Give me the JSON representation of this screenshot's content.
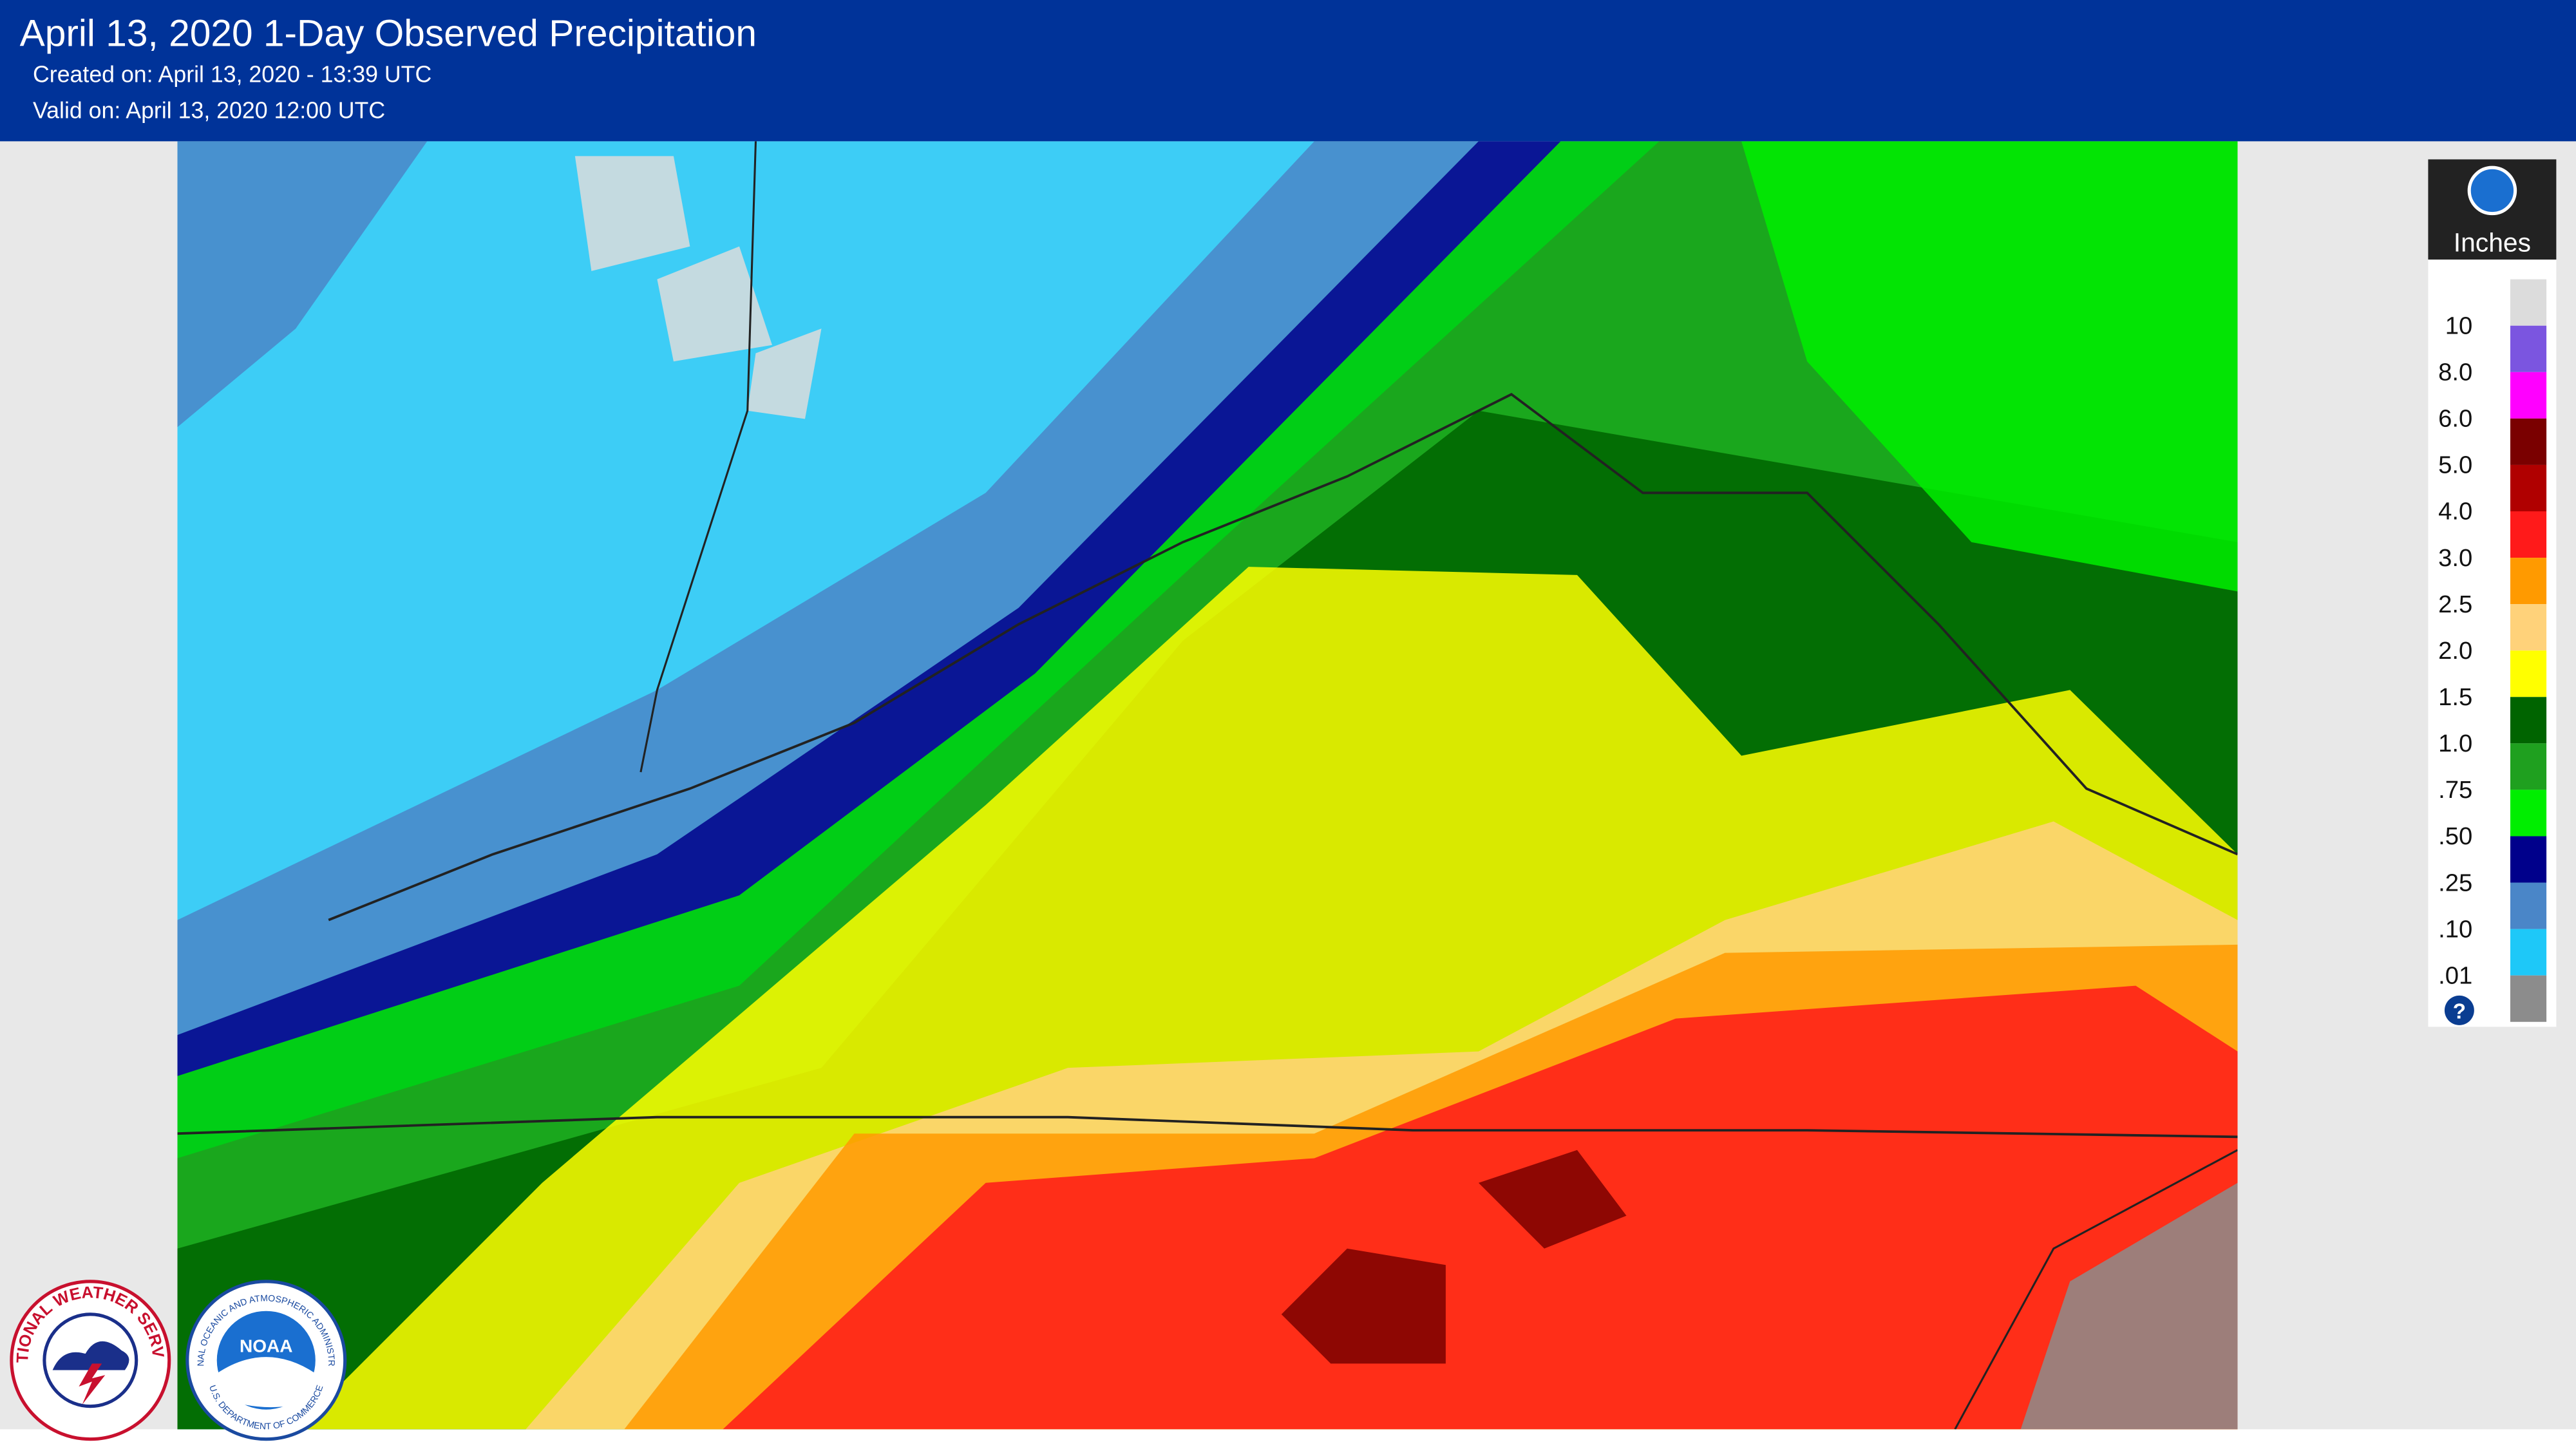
{
  "header": {
    "title": "April 13, 2020 1-Day Observed Precipitation",
    "created": "Created on: April 13, 2020 - 13:39 UTC",
    "valid": "Valid on: April 13, 2020 12:00 UTC"
  },
  "legend": {
    "unit": "Inches",
    "labels": [
      "10",
      "8.0",
      "6.0",
      "5.0",
      "4.0",
      "3.0",
      "2.5",
      "2.0",
      "1.5",
      "1.0",
      ".75",
      ".50",
      ".25",
      ".10",
      ".01"
    ],
    "colors": [
      "#dcdcdc",
      "#7b55e0",
      "#ff00ff",
      "#7a0000",
      "#b00000",
      "#ff1a1a",
      "#ff9a00",
      "#ffd27a",
      "#ffff00",
      "#006400",
      "#1fa01f",
      "#00ee00",
      "#00008b",
      "#4a86c8",
      "#1ec8f8",
      "#8c8c8c"
    ],
    "help": "?"
  },
  "logos": {
    "nws": "NATIONAL WEATHER SERVICE",
    "noaa": "NOAA",
    "noaa_ring_top": "NATIONAL OCEANIC AND ATMOSPHERIC ADMINISTRATION",
    "noaa_ring_bottom": "U.S. DEPARTMENT OF COMMERCE"
  }
}
